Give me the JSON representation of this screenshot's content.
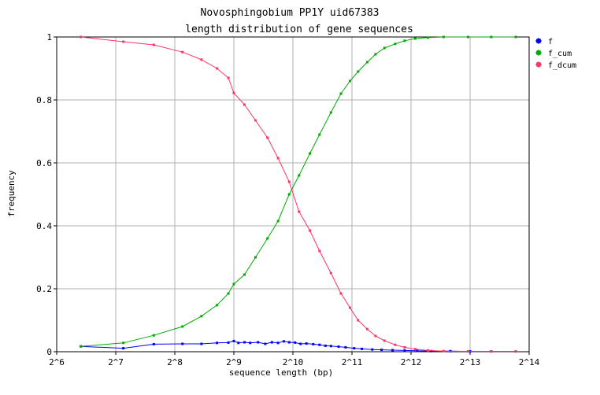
{
  "chart_data": {
    "type": "line",
    "title": "Novosphingobium PP1Y uid67383",
    "subtitle": "length distribution of gene sequences",
    "xlabel": "sequence length (bp)",
    "ylabel": "frequency",
    "x_scale": "log2",
    "xlim": [
      64,
      16384
    ],
    "ylim": [
      0,
      1
    ],
    "grid": true,
    "legend_position": "top-right",
    "x_tick_labels": [
      "2^6",
      "2^7",
      "2^8",
      "2^9",
      "2^10",
      "2^11",
      "2^12",
      "2^13",
      "2^14"
    ],
    "y_tick_labels": [
      "0",
      "0.2",
      "0.4",
      "0.6",
      "0.8",
      "1"
    ],
    "y_ticks": [
      0,
      0.2,
      0.4,
      0.6,
      0.8,
      1
    ],
    "series": [
      {
        "name": "f",
        "color": "#0000ff",
        "x": [
          85,
          140,
          200,
          280,
          350,
          420,
          480,
          512,
          540,
          580,
          620,
          680,
          740,
          800,
          860,
          920,
          980,
          1050,
          1120,
          1200,
          1300,
          1400,
          1500,
          1600,
          1750,
          1900,
          2100,
          2300,
          2600,
          2900,
          3300,
          3800,
          4400,
          5200,
          6500,
          8200,
          10500,
          14000
        ],
        "y": [
          0.017,
          0.011,
          0.024,
          0.025,
          0.025,
          0.028,
          0.029,
          0.034,
          0.028,
          0.03,
          0.028,
          0.03,
          0.025,
          0.03,
          0.028,
          0.033,
          0.03,
          0.029,
          0.025,
          0.026,
          0.024,
          0.022,
          0.019,
          0.018,
          0.016,
          0.014,
          0.011,
          0.009,
          0.007,
          0.006,
          0.005,
          0.004,
          0.003,
          0.002,
          0.002,
          0.001,
          0.001,
          0.001
        ]
      },
      {
        "name": "f_cum",
        "color": "#00aa00",
        "x": [
          85,
          140,
          200,
          280,
          350,
          420,
          480,
          512,
          580,
          660,
          760,
          860,
          980,
          1100,
          1250,
          1400,
          1600,
          1800,
          2000,
          2200,
          2450,
          2700,
          3000,
          3400,
          3800,
          4300,
          5000,
          6000,
          8000,
          10500,
          14000
        ],
        "y": [
          0.017,
          0.028,
          0.052,
          0.08,
          0.113,
          0.148,
          0.185,
          0.215,
          0.245,
          0.3,
          0.36,
          0.415,
          0.5,
          0.56,
          0.63,
          0.69,
          0.76,
          0.82,
          0.86,
          0.89,
          0.92,
          0.945,
          0.965,
          0.978,
          0.988,
          0.995,
          0.998,
          1.0,
          1.0,
          1.0,
          1.0
        ]
      },
      {
        "name": "f_dcum",
        "color": "#ff3366",
        "x": [
          85,
          140,
          200,
          280,
          350,
          420,
          480,
          512,
          580,
          660,
          760,
          860,
          980,
          1100,
          1250,
          1400,
          1600,
          1800,
          2000,
          2200,
          2450,
          2700,
          3000,
          3400,
          3800,
          4300,
          5000,
          6000,
          8000,
          10500,
          14000
        ],
        "y": [
          1.0,
          0.985,
          0.975,
          0.952,
          0.928,
          0.9,
          0.87,
          0.822,
          0.785,
          0.735,
          0.68,
          0.615,
          0.54,
          0.445,
          0.385,
          0.32,
          0.25,
          0.185,
          0.14,
          0.1,
          0.072,
          0.05,
          0.035,
          0.022,
          0.014,
          0.008,
          0.004,
          0.002,
          0.001,
          0.001,
          0.001
        ]
      }
    ]
  }
}
